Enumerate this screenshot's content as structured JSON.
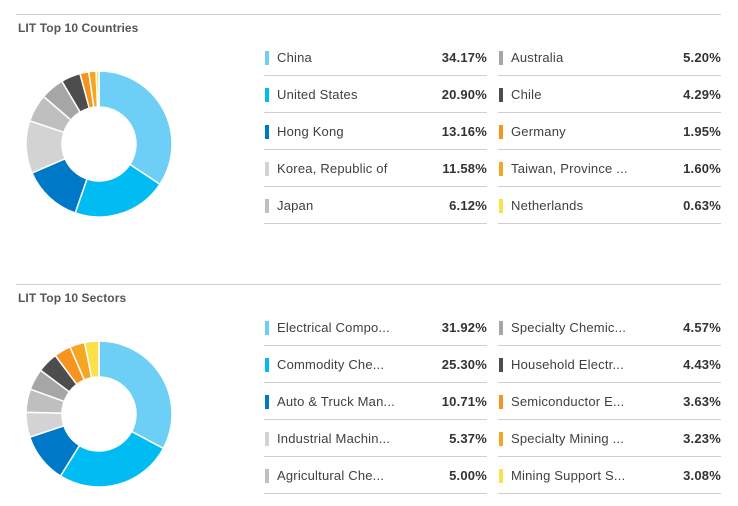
{
  "chart_data": [
    {
      "type": "pie",
      "title": "LIT Top 10 Countries",
      "labels": [
        "China",
        "United States",
        "Hong Kong",
        "Korea, Republic of",
        "Japan",
        "Australia",
        "Chile",
        "Germany",
        "Taiwan, Province ...",
        "Netherlands"
      ],
      "values": [
        34.17,
        20.9,
        13.16,
        11.58,
        6.12,
        5.2,
        4.29,
        1.95,
        1.6,
        0.63
      ],
      "value_labels": [
        "34.17%",
        "20.90%",
        "13.16%",
        "11.58%",
        "6.12%",
        "5.20%",
        "4.29%",
        "1.95%",
        "1.60%",
        "0.63%"
      ],
      "colors": [
        "#6dcff6",
        "#00bcf2",
        "#0078c8",
        "#d3d3d3",
        "#bfbfbf",
        "#a6a6a6",
        "#4d4d4d",
        "#f7941d",
        "#f5a623",
        "#fce04a"
      ],
      "legend": "right"
    },
    {
      "type": "pie",
      "title": "LIT Top 10 Sectors",
      "labels": [
        "Electrical Compo...",
        "Commodity Che...",
        "Auto & Truck Man...",
        "Industrial Machin...",
        "Agricultural Che...",
        "Specialty Chemic...",
        "Household Electr...",
        "Semiconductor E...",
        "Specialty Mining ...",
        "Mining Support S..."
      ],
      "values": [
        31.92,
        25.3,
        10.71,
        5.37,
        5.0,
        4.57,
        4.43,
        3.63,
        3.23,
        3.08
      ],
      "value_labels": [
        "31.92%",
        "25.30%",
        "10.71%",
        "5.37%",
        "5.00%",
        "4.57%",
        "4.43%",
        "3.63%",
        "3.23%",
        "3.08%"
      ],
      "colors": [
        "#6dcff6",
        "#00bcf2",
        "#0078c8",
        "#d3d3d3",
        "#bfbfbf",
        "#a6a6a6",
        "#4d4d4d",
        "#f7941d",
        "#f5a623",
        "#fce04a"
      ],
      "legend": "right"
    }
  ]
}
